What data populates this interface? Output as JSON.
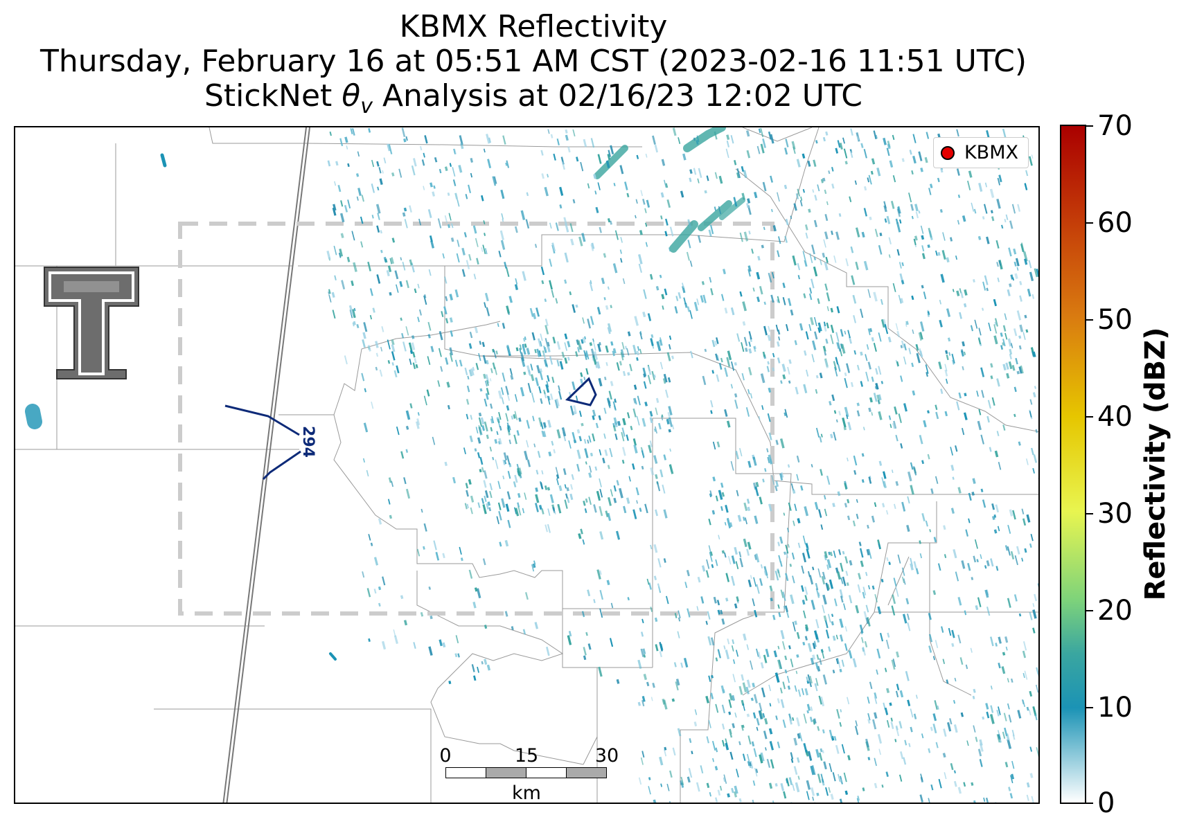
{
  "title": {
    "line1": "KBMX Reflectivity",
    "line2": "Thursday, February 16 at 05:51 AM CST (2023-02-16 11:51 UTC)",
    "line3": "StickNet θv Analysis at 02/16/23 12:02 UTC"
  },
  "legend": {
    "label": "KBMX",
    "marker_color": "#e50000"
  },
  "colorbar": {
    "title": "Reflectivity (dBZ)",
    "ticks": [
      "70",
      "60",
      "50",
      "40",
      "30",
      "20",
      "10",
      "0"
    ],
    "range": [
      0,
      70
    ]
  },
  "contour": {
    "label": "294",
    "color": "#0d2a78"
  },
  "scalebar": {
    "labels": [
      "0",
      "15",
      "30"
    ],
    "unit": "km"
  },
  "analysis_box": {
    "style": "dashed",
    "color": "#cccccc"
  },
  "logo": {
    "name": "texas-tech-logo"
  }
}
